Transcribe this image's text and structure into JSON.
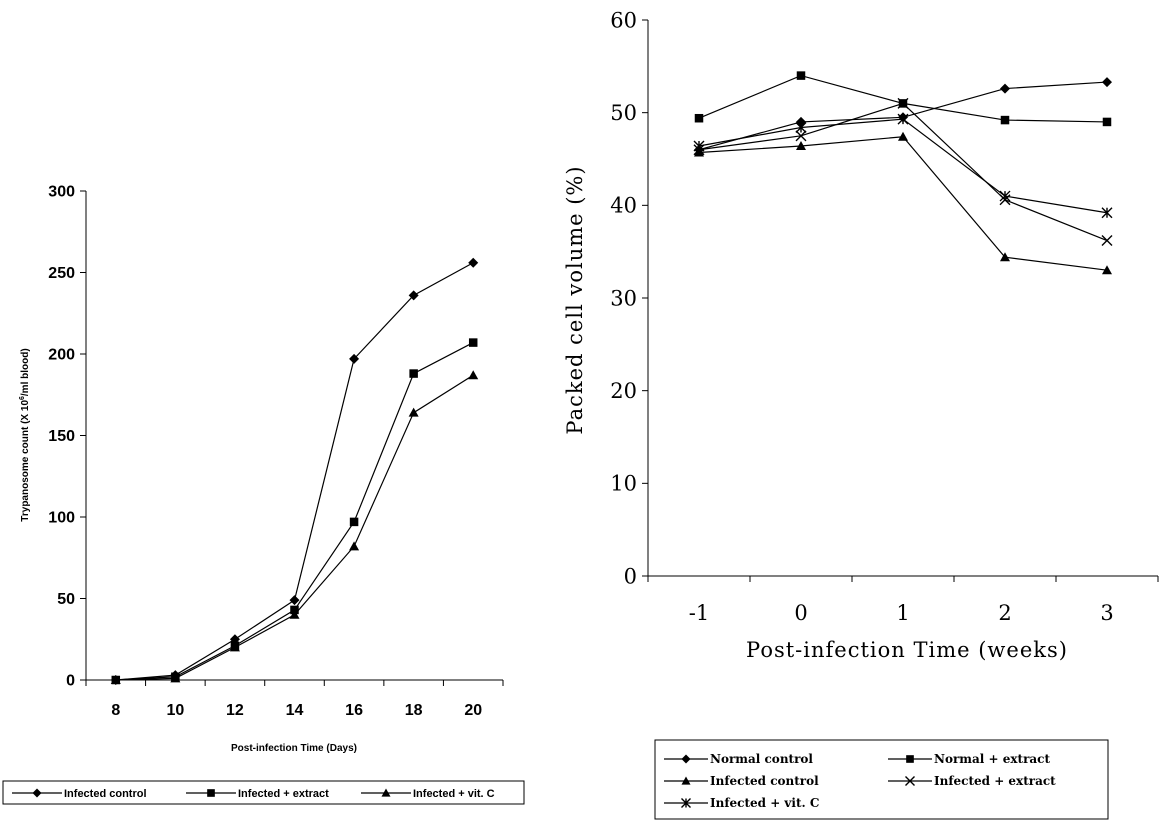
{
  "chart_data": [
    {
      "type": "line",
      "xlabel": "Post-infection Time (Days)",
      "ylabel": "Trypanosome count (X 10",
      "ylabel_sup": "6",
      "ylabel_tail": "/ml blood)",
      "x": [
        8,
        10,
        12,
        14,
        16,
        18,
        20
      ],
      "x_tick_labels": [
        "8",
        "10",
        "12",
        "14",
        "16",
        "18",
        "20"
      ],
      "ylim": [
        0,
        300
      ],
      "y_ticks": [
        0,
        50,
        100,
        150,
        200,
        250,
        300
      ],
      "y_tick_labels": [
        "0",
        "50",
        "100",
        "150",
        "200",
        "250",
        "300"
      ],
      "legend_position": "bottom",
      "series": [
        {
          "name": "Infected control",
          "marker": "diamond",
          "values": [
            0,
            3,
            25,
            49,
            197,
            236,
            256
          ]
        },
        {
          "name": "Infected + extract",
          "marker": "square",
          "values": [
            0,
            2,
            21,
            43,
            97,
            188,
            207
          ]
        },
        {
          "name": "Infected + vit. C",
          "marker": "triangle",
          "values": [
            0,
            1,
            20,
            40,
            82,
            164,
            187
          ]
        }
      ]
    },
    {
      "type": "line",
      "xlabel": "Post-infection Time (weeks)",
      "ylabel": "Packed cell volume (%)",
      "x": [
        -1,
        0,
        1,
        2,
        3
      ],
      "x_tick_labels": [
        "-1",
        "0",
        "1",
        "2",
        "3"
      ],
      "ylim": [
        0,
        60
      ],
      "y_ticks": [
        0,
        10,
        20,
        30,
        40,
        50,
        60
      ],
      "y_tick_labels": [
        "0",
        "10",
        "20",
        "30",
        "40",
        "50",
        "60"
      ],
      "legend_position": "bottom",
      "series": [
        {
          "name": "Normal control",
          "marker": "diamond",
          "values": [
            46,
            49,
            49.5,
            52.6,
            53.3
          ]
        },
        {
          "name": "Normal + extract",
          "marker": "square",
          "values": [
            49.4,
            54,
            51,
            49.2,
            49
          ]
        },
        {
          "name": "Infected control",
          "marker": "triangle",
          "values": [
            45.7,
            46.4,
            47.4,
            34.4,
            33
          ]
        },
        {
          "name": "Infected + extract",
          "marker": "x",
          "values": [
            46,
            47.5,
            51,
            40.6,
            36.2
          ]
        },
        {
          "name": "Infected + vit. C",
          "marker": "star",
          "values": [
            46.4,
            48.4,
            49.3,
            41,
            39.2
          ]
        }
      ]
    }
  ]
}
